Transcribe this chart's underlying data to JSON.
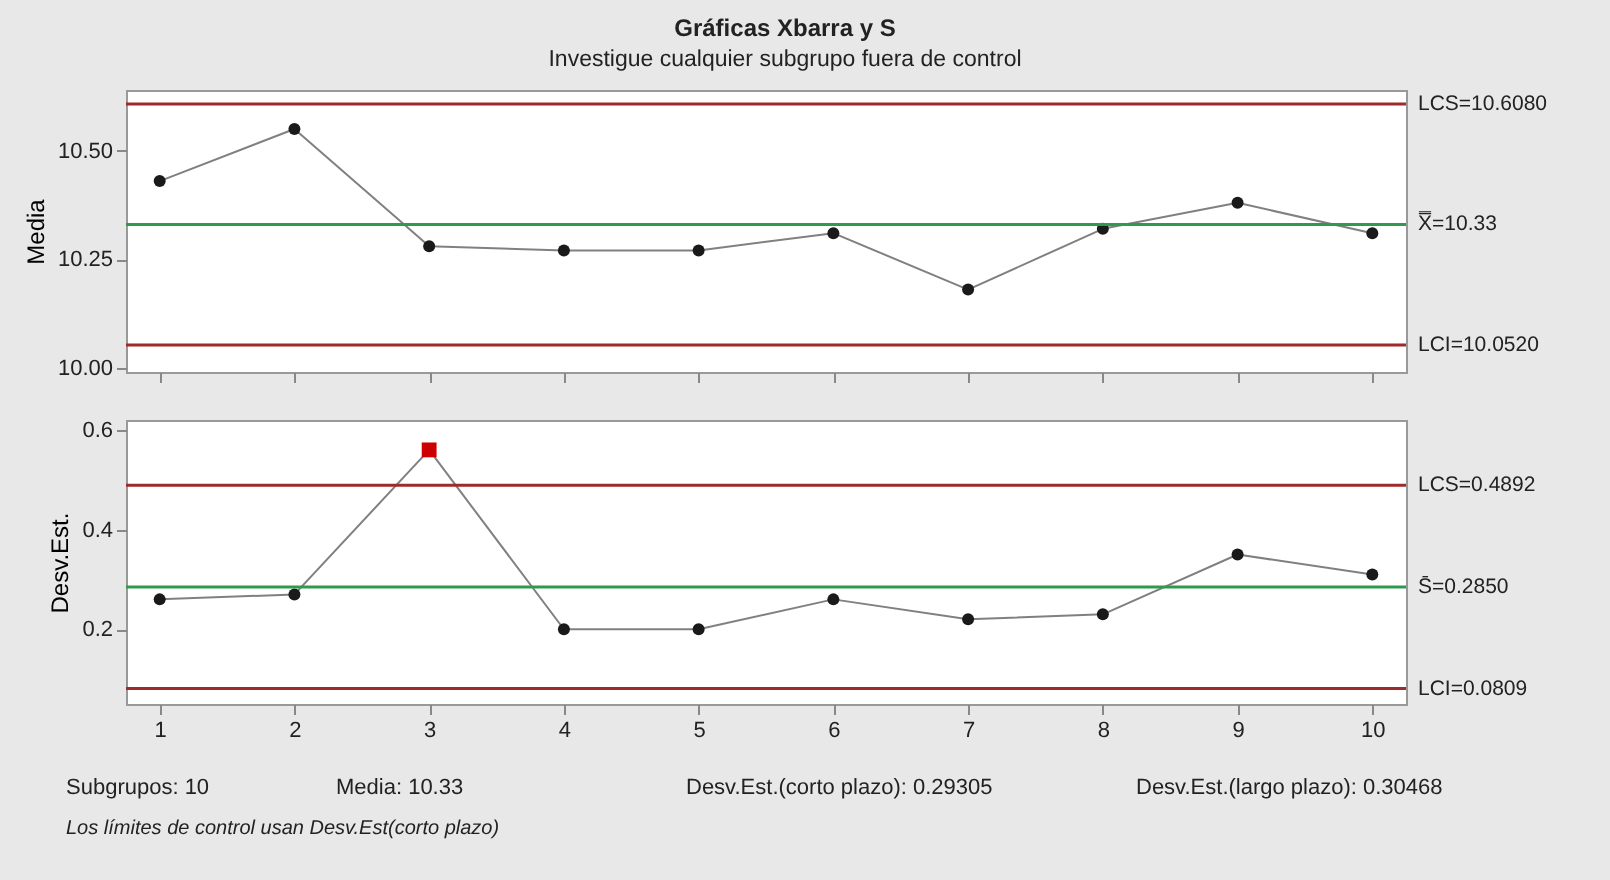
{
  "chart_data": [
    {
      "type": "line",
      "title": "Gráficas Xbarra y S",
      "subtitle": "Investigue cualquier subgrupo fuera de control",
      "ylabel": "Media",
      "categories": [
        "1",
        "2",
        "3",
        "4",
        "5",
        "6",
        "7",
        "8",
        "9",
        "10"
      ],
      "series": [
        {
          "type": "line",
          "color": "#808080",
          "marker": "none",
          "values": [
            10.43,
            10.55,
            10.28,
            10.27,
            10.27,
            10.31,
            10.18,
            10.32,
            10.38,
            10.31
          ]
        },
        {
          "type": "scatter",
          "color": "#1a1a1a",
          "marker": "circle",
          "values": [
            10.43,
            10.55,
            10.28,
            10.27,
            10.27,
            10.31,
            10.18,
            10.32,
            10.38,
            10.31
          ]
        }
      ],
      "ylim": [
        9.99,
        10.64
      ],
      "yticks": [
        {
          "value": 10,
          "label": "10.00"
        },
        10.25,
        {
          "value": 10.5,
          "label": "10.50"
        }
      ],
      "ref_lines": [
        {
          "axis": "y",
          "value": 10.608,
          "label": "LCS=10.6080",
          "color": "#9e2a2b"
        },
        {
          "axis": "y",
          "value": 10.33,
          "label": "X̿=10.33",
          "color": "#2e9a4e"
        },
        {
          "axis": "y",
          "value": 10.052,
          "label": "LCI=10.0520",
          "color": "#9e2a2b"
        }
      ],
      "tick_labels": "y",
      "grid": false
    },
    {
      "type": "line",
      "ylabel": "Desv.Est.",
      "categories": [
        "1",
        "2",
        "3",
        "4",
        "5",
        "6",
        "7",
        "8",
        "9",
        "10"
      ],
      "series": [
        {
          "type": "line",
          "color": "#808080",
          "marker": "none",
          "values": [
            0.26,
            0.27,
            0.56,
            0.2,
            0.2,
            0.26,
            0.22,
            0.23,
            0.35,
            0.31
          ]
        },
        {
          "type": "scatter",
          "color": "#1a1a1a",
          "marker": "circle",
          "values": [
            0.26,
            0.27,
            null,
            0.2,
            0.2,
            0.26,
            0.22,
            0.23,
            0.35,
            0.31
          ]
        },
        {
          "type": "scatter",
          "color": "#cc0000",
          "marker": "square",
          "values": [
            null,
            null,
            0.56,
            null,
            null,
            null,
            null,
            null,
            null,
            null
          ]
        }
      ],
      "ylim": [
        0.05,
        0.62
      ],
      "yticks": [
        0.2,
        0.4,
        0.6
      ],
      "ref_lines": [
        {
          "axis": "y",
          "value": 0.4892,
          "label": "LCS=0.4892",
          "color": "#9e2a2b"
        },
        {
          "axis": "y",
          "value": 0.285,
          "label": "S̄=0.2850",
          "color": "#2e9a4e"
        },
        {
          "axis": "y",
          "value": 0.0809,
          "label": "LCI=0.0809",
          "color": "#9e2a2b"
        }
      ],
      "annotations": [
        "Subgrupos: 10",
        "Media: 10.33",
        "Desv.Est.(corto plazo): 0.29305",
        "Desv.Est.(largo plazo): 0.30468",
        "Los límites de control usan Desv.Est(corto plazo)"
      ],
      "grid": false
    }
  ]
}
